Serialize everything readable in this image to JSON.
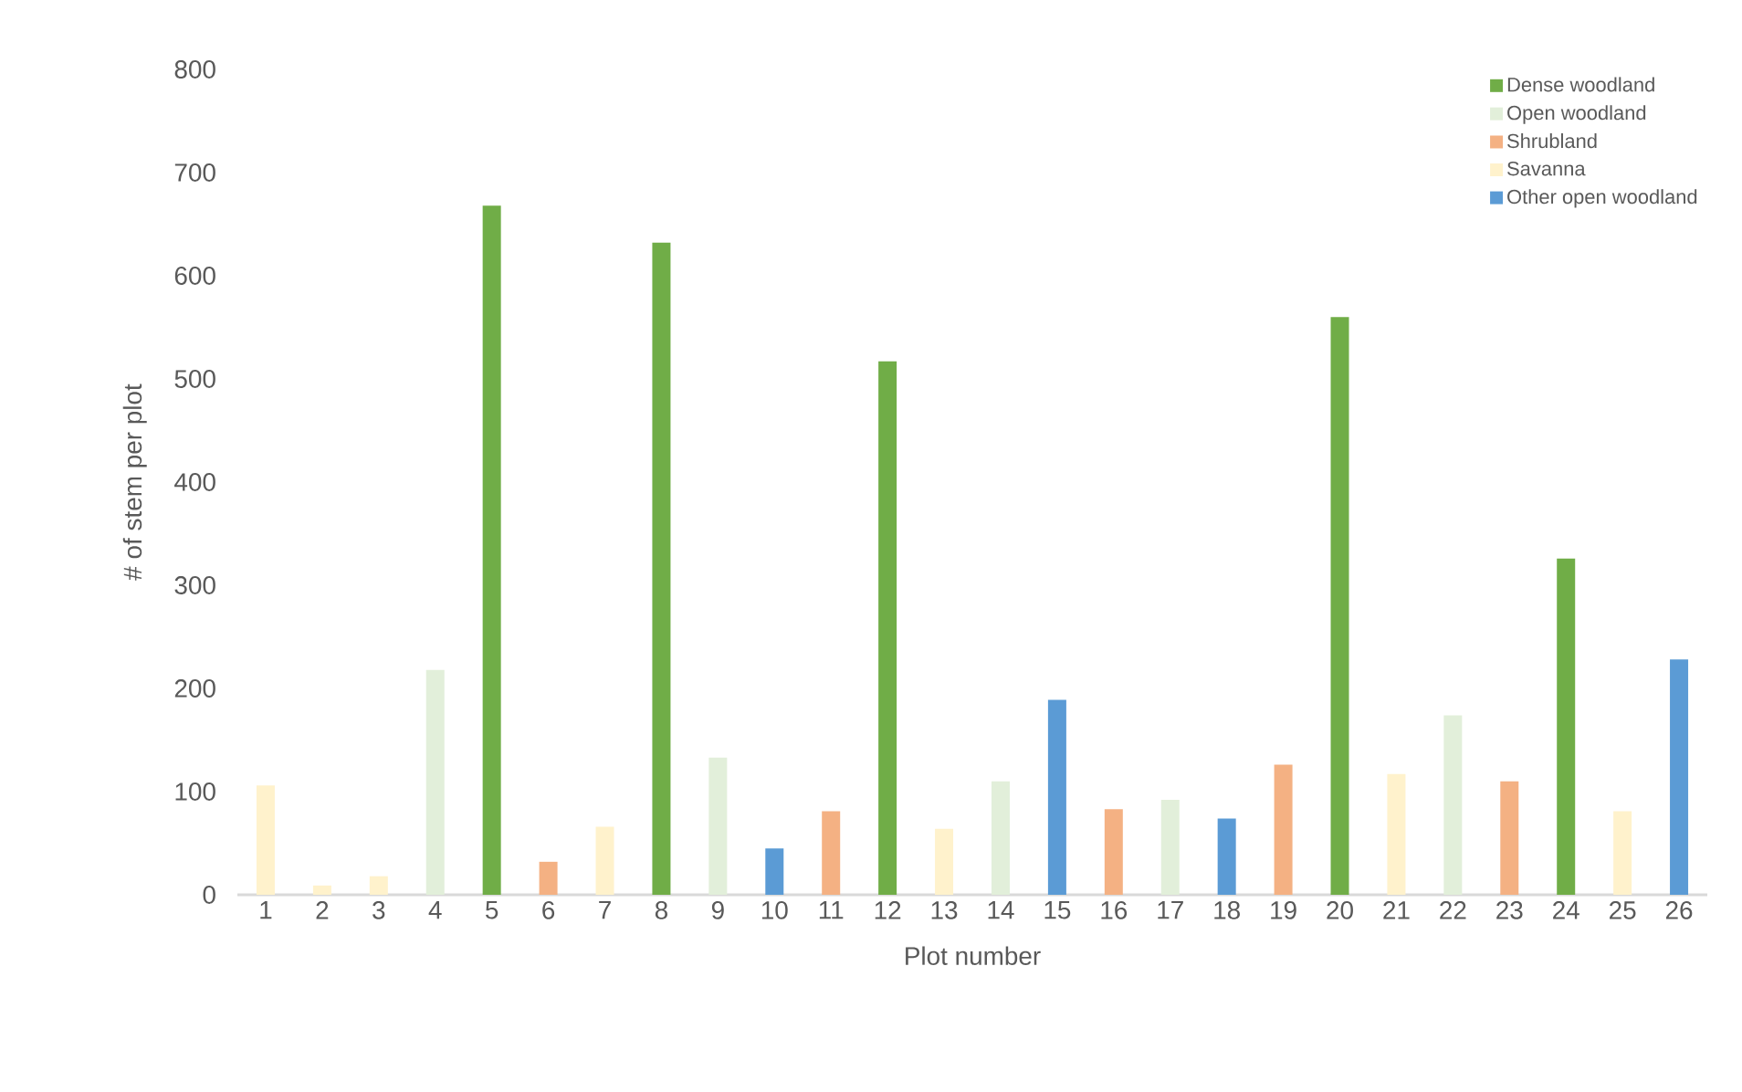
{
  "chart_data": {
    "type": "bar",
    "xlabel": "Plot number",
    "ylabel": "# of stem per plot",
    "categories": [
      "1",
      "2",
      "3",
      "4",
      "5",
      "6",
      "7",
      "8",
      "9",
      "10",
      "11",
      "12",
      "13",
      "14",
      "15",
      "16",
      "17",
      "18",
      "19",
      "20",
      "21",
      "22",
      "23",
      "24",
      "25",
      "26"
    ],
    "series": [
      {
        "name": "Dense woodland",
        "color": "#70ad47",
        "values": [
          null,
          null,
          null,
          null,
          668,
          null,
          null,
          632,
          null,
          null,
          null,
          517,
          null,
          null,
          null,
          null,
          null,
          null,
          null,
          560,
          null,
          null,
          null,
          326,
          null,
          null
        ]
      },
      {
        "name": "Open woodland",
        "color": "#e2efda",
        "values": [
          null,
          null,
          null,
          218,
          null,
          null,
          null,
          null,
          133,
          null,
          null,
          null,
          null,
          110,
          null,
          null,
          92,
          null,
          null,
          null,
          null,
          174,
          null,
          null,
          null,
          null
        ]
      },
      {
        "name": "Shrubland",
        "color": "#f4b183",
        "values": [
          null,
          null,
          null,
          null,
          null,
          32,
          null,
          null,
          null,
          null,
          81,
          null,
          null,
          null,
          null,
          83,
          null,
          null,
          126,
          null,
          null,
          null,
          110,
          null,
          null,
          null
        ]
      },
      {
        "name": "Savanna",
        "color": "#fff2cc",
        "values": [
          106,
          9,
          18,
          null,
          null,
          null,
          66,
          null,
          null,
          null,
          null,
          null,
          64,
          null,
          null,
          null,
          null,
          null,
          null,
          null,
          117,
          null,
          null,
          null,
          81,
          null
        ]
      },
      {
        "name": "Other open woodland",
        "color": "#5b9bd5",
        "values": [
          null,
          null,
          null,
          null,
          null,
          null,
          null,
          null,
          null,
          45,
          null,
          null,
          null,
          null,
          189,
          null,
          null,
          74,
          null,
          null,
          null,
          null,
          null,
          null,
          null,
          228
        ]
      }
    ],
    "ylim": [
      0,
      800
    ],
    "yticks": [
      0,
      100,
      200,
      300,
      400,
      500,
      600,
      700,
      800
    ],
    "grid": false,
    "legend": "top right"
  }
}
